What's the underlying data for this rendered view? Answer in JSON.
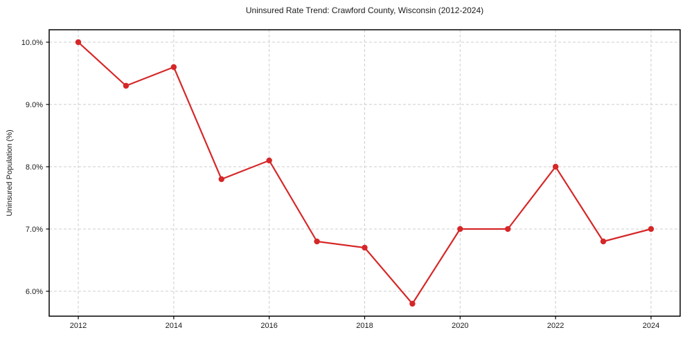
{
  "chart_data": {
    "type": "line",
    "title": "Uninsured Rate Trend: Crawford County, Wisconsin (2012-2024)",
    "xlabel": "",
    "ylabel": "Uninsured Population (%)",
    "x": [
      2012,
      2013,
      2014,
      2015,
      2016,
      2017,
      2018,
      2019,
      2020,
      2021,
      2022,
      2023,
      2024
    ],
    "values": [
      10.0,
      9.3,
      9.6,
      7.8,
      8.1,
      6.8,
      6.7,
      5.8,
      7.0,
      7.0,
      8.0,
      6.8,
      7.0
    ],
    "xticks": [
      2012,
      2014,
      2016,
      2018,
      2020,
      2022,
      2024
    ],
    "xtick_labels": [
      "2012",
      "2014",
      "2016",
      "2018",
      "2020",
      "2022",
      "2024"
    ],
    "yticks": [
      6.0,
      7.0,
      8.0,
      9.0,
      10.0
    ],
    "ytick_labels": [
      "6.0%",
      "7.0%",
      "8.0%",
      "9.0%",
      "10.0%"
    ],
    "xlim": [
      2011.39,
      2024.61
    ],
    "ylim": [
      5.6,
      10.2
    ],
    "grid": true,
    "legend": "none",
    "line_color": "#d62728",
    "marker_color": "#d62728",
    "grid_color": "#cdcdcd",
    "axis_color": "#000000",
    "text_color": "#1a1a1a"
  }
}
